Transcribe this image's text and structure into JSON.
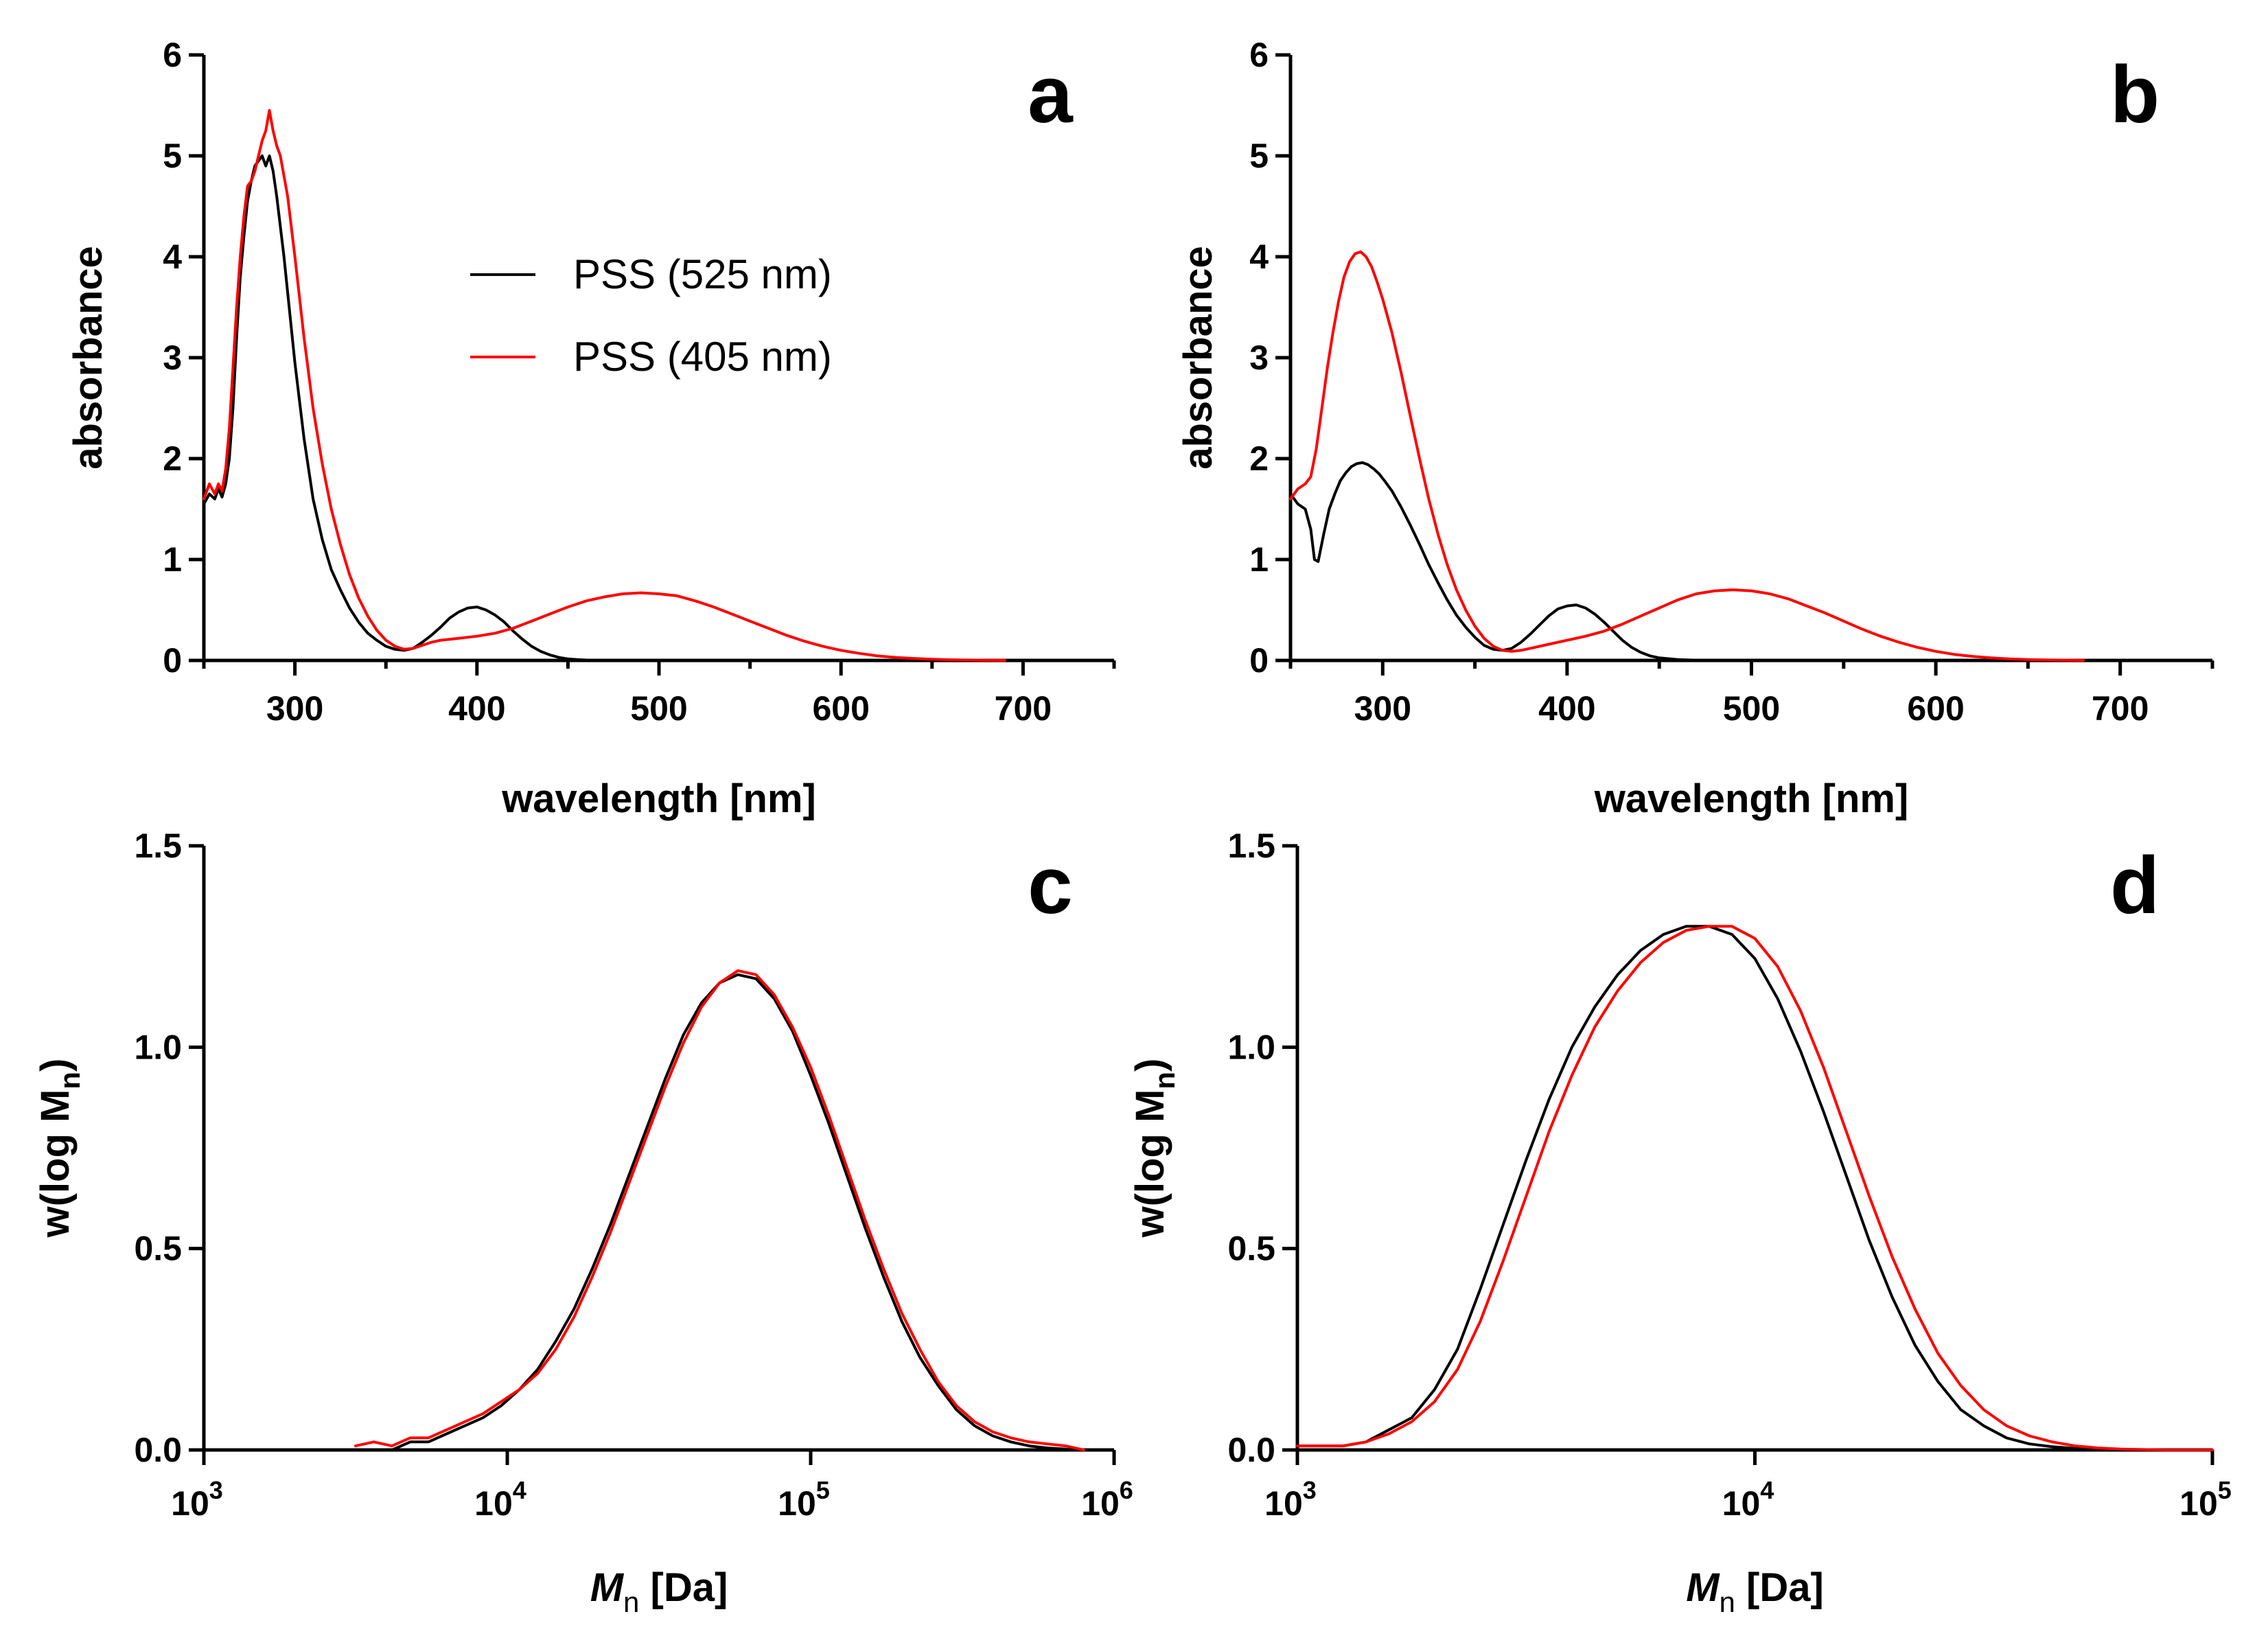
{
  "colors": {
    "black_series": "#000000",
    "red_series": "#ff0000"
  },
  "chart_data": [
    {
      "panel": "a",
      "type": "line",
      "xlabel": "wavelength [nm]",
      "ylabel": "absorbance",
      "xlim": [
        250,
        750
      ],
      "ylim": [
        0,
        6
      ],
      "xticks": [
        300,
        400,
        500,
        600,
        700
      ],
      "yticks": [
        0,
        1,
        2,
        3,
        4,
        5,
        6
      ],
      "legend": {
        "placement": "center",
        "entries": [
          "PSS (525 nm)",
          "PSS (405 nm)"
        ]
      },
      "series": [
        {
          "name": "PSS (525 nm)",
          "color": "#000000",
          "x": [
            250,
            253,
            256,
            258,
            260,
            262,
            264,
            266,
            268,
            270,
            272,
            274,
            276,
            278,
            280,
            282,
            284,
            286,
            288,
            290,
            292,
            294,
            296,
            298,
            300,
            305,
            310,
            315,
            320,
            325,
            330,
            335,
            340,
            345,
            350,
            355,
            360,
            365,
            370,
            375,
            380,
            385,
            390,
            395,
            400,
            405,
            410,
            415,
            420,
            425,
            430,
            435,
            440,
            445,
            450,
            455,
            460,
            470,
            480,
            490,
            500,
            520,
            550,
            600,
            650,
            690
          ],
          "y": [
            1.55,
            1.65,
            1.6,
            1.7,
            1.62,
            1.75,
            2.0,
            2.5,
            3.2,
            3.8,
            4.2,
            4.55,
            4.75,
            4.9,
            4.95,
            5.0,
            4.9,
            5.0,
            4.85,
            4.6,
            4.3,
            4.0,
            3.65,
            3.3,
            2.95,
            2.2,
            1.6,
            1.2,
            0.9,
            0.7,
            0.52,
            0.38,
            0.27,
            0.2,
            0.14,
            0.11,
            0.1,
            0.12,
            0.18,
            0.25,
            0.33,
            0.42,
            0.48,
            0.52,
            0.53,
            0.5,
            0.45,
            0.38,
            0.29,
            0.21,
            0.14,
            0.09,
            0.055,
            0.03,
            0.015,
            0.008,
            0.004,
            0.002,
            0.001,
            0,
            0,
            0,
            0,
            0,
            0,
            0
          ]
        },
        {
          "name": "PSS (405 nm)",
          "color": "#ff0000",
          "x": [
            250,
            253,
            256,
            258,
            260,
            262,
            264,
            266,
            268,
            270,
            272,
            274,
            276,
            278,
            280,
            282,
            284,
            286,
            288,
            290,
            292,
            294,
            296,
            298,
            300,
            305,
            310,
            315,
            320,
            325,
            330,
            335,
            340,
            345,
            350,
            355,
            360,
            365,
            370,
            375,
            380,
            390,
            400,
            410,
            420,
            430,
            440,
            450,
            460,
            470,
            480,
            490,
            500,
            510,
            520,
            530,
            540,
            550,
            560,
            570,
            580,
            590,
            600,
            610,
            620,
            630,
            640,
            650,
            660,
            670,
            680,
            690
          ],
          "y": [
            1.6,
            1.75,
            1.65,
            1.75,
            1.68,
            1.9,
            2.3,
            2.9,
            3.5,
            4.0,
            4.4,
            4.7,
            4.75,
            4.85,
            5.0,
            5.15,
            5.25,
            5.45,
            5.25,
            5.1,
            5.0,
            4.8,
            4.6,
            4.3,
            4.0,
            3.2,
            2.5,
            1.95,
            1.5,
            1.15,
            0.85,
            0.62,
            0.44,
            0.3,
            0.2,
            0.14,
            0.11,
            0.12,
            0.15,
            0.18,
            0.2,
            0.22,
            0.24,
            0.27,
            0.32,
            0.39,
            0.46,
            0.53,
            0.59,
            0.63,
            0.66,
            0.67,
            0.66,
            0.64,
            0.59,
            0.53,
            0.46,
            0.39,
            0.32,
            0.25,
            0.19,
            0.14,
            0.1,
            0.07,
            0.045,
            0.03,
            0.02,
            0.012,
            0.007,
            0.004,
            0.002,
            0.001
          ]
        }
      ]
    },
    {
      "panel": "b",
      "type": "line",
      "xlabel": "wavelength [nm]",
      "ylabel": "absorbance",
      "xlim": [
        250,
        750
      ],
      "ylim": [
        0,
        6
      ],
      "xticks": [
        300,
        400,
        500,
        600,
        700
      ],
      "yticks": [
        0,
        1,
        2,
        3,
        4,
        5,
        6
      ],
      "series": [
        {
          "name": "PSS (525 nm)",
          "color": "#000000",
          "x": [
            250,
            254,
            258,
            261,
            263,
            265,
            268,
            271,
            274,
            277,
            280,
            283,
            286,
            289,
            292,
            295,
            298,
            301,
            305,
            310,
            315,
            320,
            325,
            330,
            335,
            340,
            345,
            350,
            355,
            360,
            365,
            370,
            375,
            380,
            385,
            390,
            395,
            400,
            405,
            410,
            415,
            420,
            425,
            430,
            435,
            440,
            445,
            450,
            460,
            470,
            480,
            500,
            550,
            600,
            680
          ],
          "y": [
            1.65,
            1.55,
            1.5,
            1.3,
            1.0,
            0.98,
            1.25,
            1.5,
            1.65,
            1.78,
            1.86,
            1.92,
            1.95,
            1.96,
            1.94,
            1.9,
            1.85,
            1.78,
            1.68,
            1.52,
            1.34,
            1.15,
            0.95,
            0.77,
            0.6,
            0.45,
            0.33,
            0.23,
            0.15,
            0.11,
            0.1,
            0.12,
            0.18,
            0.26,
            0.35,
            0.44,
            0.51,
            0.54,
            0.55,
            0.52,
            0.46,
            0.38,
            0.29,
            0.2,
            0.13,
            0.08,
            0.045,
            0.025,
            0.008,
            0.003,
            0.001,
            0,
            0,
            0,
            0
          ]
        },
        {
          "name": "PSS (405 nm)",
          "color": "#ff0000",
          "x": [
            250,
            254,
            258,
            261,
            264,
            267,
            270,
            273,
            276,
            279,
            282,
            285,
            288,
            291,
            294,
            297,
            300,
            305,
            310,
            315,
            320,
            325,
            330,
            335,
            340,
            345,
            350,
            355,
            360,
            365,
            370,
            375,
            380,
            390,
            400,
            410,
            420,
            430,
            440,
            450,
            460,
            470,
            480,
            490,
            500,
            510,
            520,
            530,
            540,
            550,
            560,
            570,
            580,
            590,
            600,
            610,
            620,
            630,
            640,
            650,
            660,
            680
          ],
          "y": [
            1.6,
            1.7,
            1.75,
            1.82,
            2.1,
            2.5,
            2.9,
            3.25,
            3.55,
            3.8,
            3.95,
            4.03,
            4.05,
            4.0,
            3.9,
            3.75,
            3.58,
            3.25,
            2.85,
            2.42,
            2.0,
            1.6,
            1.25,
            0.95,
            0.7,
            0.5,
            0.34,
            0.22,
            0.14,
            0.1,
            0.09,
            0.1,
            0.12,
            0.16,
            0.2,
            0.24,
            0.29,
            0.36,
            0.44,
            0.52,
            0.6,
            0.66,
            0.69,
            0.7,
            0.69,
            0.66,
            0.61,
            0.54,
            0.47,
            0.39,
            0.31,
            0.24,
            0.18,
            0.13,
            0.09,
            0.06,
            0.04,
            0.025,
            0.015,
            0.009,
            0.005,
            0.001
          ]
        }
      ]
    },
    {
      "panel": "c",
      "type": "line",
      "xscale": "log",
      "xlabel_symbol": "M",
      "xlabel_sub": "n",
      "xlabel_rest": " [Da]",
      "ylabel_text": "w(log M",
      "ylabel_sub": "n",
      "ylabel_close": ")",
      "xlim": [
        1000,
        1000000
      ],
      "ylim": [
        0,
        1.5
      ],
      "xticks": [
        {
          "base": "10",
          "exp": "3"
        },
        {
          "base": "10",
          "exp": "4"
        },
        {
          "base": "10",
          "exp": "5"
        },
        {
          "base": "10",
          "exp": "6"
        }
      ],
      "yticks": [
        "0.0",
        "0.5",
        "1.0",
        "1.5"
      ],
      "series": [
        {
          "name": "PSS (525 nm)",
          "color": "#000000",
          "log10_x": [
            3.5,
            3.56,
            3.62,
            3.68,
            3.74,
            3.8,
            3.86,
            3.92,
            3.98,
            4.04,
            4.1,
            4.16,
            4.22,
            4.28,
            4.34,
            4.4,
            4.46,
            4.52,
            4.58,
            4.64,
            4.7,
            4.76,
            4.82,
            4.88,
            4.94,
            5.0,
            5.06,
            5.12,
            5.18,
            5.24,
            5.3,
            5.36,
            5.42,
            5.48,
            5.54,
            5.6,
            5.66,
            5.72,
            5.78,
            5.84,
            5.9
          ],
          "y": [
            0.0,
            0.0,
            0.0,
            0.02,
            0.02,
            0.04,
            0.06,
            0.08,
            0.11,
            0.15,
            0.2,
            0.27,
            0.35,
            0.45,
            0.56,
            0.68,
            0.8,
            0.92,
            1.03,
            1.11,
            1.16,
            1.18,
            1.17,
            1.12,
            1.04,
            0.93,
            0.81,
            0.68,
            0.55,
            0.43,
            0.32,
            0.23,
            0.16,
            0.1,
            0.06,
            0.035,
            0.02,
            0.01,
            0.005,
            0.002,
            0.0
          ]
        },
        {
          "name": "PSS (405 nm)",
          "color": "#ff0000",
          "log10_x": [
            3.5,
            3.56,
            3.62,
            3.68,
            3.74,
            3.8,
            3.86,
            3.92,
            3.98,
            4.04,
            4.1,
            4.16,
            4.22,
            4.28,
            4.34,
            4.4,
            4.46,
            4.52,
            4.58,
            4.64,
            4.7,
            4.76,
            4.82,
            4.88,
            4.94,
            5.0,
            5.06,
            5.12,
            5.18,
            5.24,
            5.3,
            5.36,
            5.42,
            5.48,
            5.54,
            5.6,
            5.66,
            5.72,
            5.78,
            5.84,
            5.9
          ],
          "y": [
            0.01,
            0.02,
            0.01,
            0.03,
            0.03,
            0.05,
            0.07,
            0.09,
            0.12,
            0.15,
            0.19,
            0.25,
            0.33,
            0.43,
            0.54,
            0.66,
            0.78,
            0.9,
            1.01,
            1.1,
            1.16,
            1.19,
            1.18,
            1.13,
            1.05,
            0.95,
            0.83,
            0.7,
            0.57,
            0.45,
            0.34,
            0.25,
            0.17,
            0.11,
            0.07,
            0.045,
            0.03,
            0.02,
            0.015,
            0.01,
            0.0
          ]
        }
      ]
    },
    {
      "panel": "d",
      "type": "line",
      "xscale": "log",
      "xlabel_symbol": "M",
      "xlabel_sub": "n",
      "xlabel_rest": " [Da]",
      "ylabel_text": "w(log M",
      "ylabel_sub": "n",
      "ylabel_close": ")",
      "xlim": [
        1000,
        100000
      ],
      "ylim": [
        0,
        1.5
      ],
      "xticks": [
        {
          "base": "10",
          "exp": "3"
        },
        {
          "base": "10",
          "exp": "4"
        },
        {
          "base": "10",
          "exp": "5"
        }
      ],
      "yticks": [
        "0.0",
        "0.5",
        "1.0",
        "1.5"
      ],
      "series": [
        {
          "name": "PSS (525 nm)",
          "color": "#000000",
          "log10_x": [
            3.0,
            3.1,
            3.15,
            3.2,
            3.25,
            3.3,
            3.35,
            3.4,
            3.45,
            3.5,
            3.55,
            3.6,
            3.65,
            3.7,
            3.75,
            3.8,
            3.85,
            3.9,
            3.95,
            4.0,
            4.05,
            4.1,
            4.15,
            4.2,
            4.25,
            4.3,
            4.35,
            4.4,
            4.45,
            4.5,
            4.55,
            4.6,
            4.65,
            4.7,
            4.75,
            4.8,
            4.9,
            5.0
          ],
          "y": [
            0.01,
            0.01,
            0.02,
            0.05,
            0.08,
            0.15,
            0.25,
            0.4,
            0.56,
            0.72,
            0.87,
            1.0,
            1.1,
            1.18,
            1.24,
            1.28,
            1.3,
            1.3,
            1.28,
            1.22,
            1.12,
            0.99,
            0.84,
            0.68,
            0.52,
            0.38,
            0.26,
            0.17,
            0.1,
            0.06,
            0.03,
            0.015,
            0.008,
            0.004,
            0.002,
            0.001,
            0.0,
            0.0
          ]
        },
        {
          "name": "PSS (405 nm)",
          "color": "#ff0000",
          "log10_x": [
            3.0,
            3.1,
            3.15,
            3.2,
            3.25,
            3.3,
            3.35,
            3.4,
            3.45,
            3.5,
            3.55,
            3.6,
            3.65,
            3.7,
            3.75,
            3.8,
            3.85,
            3.9,
            3.95,
            4.0,
            4.05,
            4.1,
            4.15,
            4.2,
            4.25,
            4.3,
            4.35,
            4.4,
            4.45,
            4.5,
            4.55,
            4.6,
            4.65,
            4.7,
            4.75,
            4.8,
            4.9,
            5.0
          ],
          "y": [
            0.01,
            0.01,
            0.02,
            0.04,
            0.07,
            0.12,
            0.2,
            0.32,
            0.47,
            0.63,
            0.79,
            0.93,
            1.05,
            1.14,
            1.21,
            1.26,
            1.29,
            1.3,
            1.3,
            1.27,
            1.2,
            1.09,
            0.95,
            0.79,
            0.63,
            0.48,
            0.35,
            0.24,
            0.16,
            0.1,
            0.06,
            0.035,
            0.02,
            0.01,
            0.005,
            0.002,
            0.0,
            0.0
          ]
        }
      ]
    }
  ]
}
